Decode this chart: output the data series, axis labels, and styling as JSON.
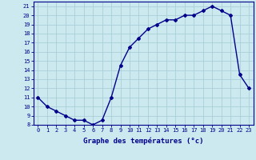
{
  "x": [
    0,
    1,
    2,
    3,
    4,
    5,
    6,
    7,
    8,
    9,
    10,
    11,
    12,
    13,
    14,
    15,
    16,
    17,
    18,
    19,
    20,
    21,
    22,
    23
  ],
  "y": [
    11,
    10,
    9.5,
    9,
    8.5,
    8.5,
    8,
    8.5,
    11,
    14.5,
    16.5,
    17.5,
    18.5,
    19,
    19.5,
    19.5,
    20,
    20,
    20.5,
    21,
    20.5,
    20,
    13.5,
    12
  ],
  "xlabel": "Graphe des températures (°c)",
  "ylim": [
    8,
    21.5
  ],
  "xlim": [
    -0.5,
    23.5
  ],
  "yticks": [
    8,
    9,
    10,
    11,
    12,
    13,
    14,
    15,
    16,
    17,
    18,
    19,
    20,
    21
  ],
  "xticks": [
    0,
    1,
    2,
    3,
    4,
    5,
    6,
    7,
    8,
    9,
    10,
    11,
    12,
    13,
    14,
    15,
    16,
    17,
    18,
    19,
    20,
    21,
    22,
    23
  ],
  "line_color": "#00008b",
  "marker": "D",
  "marker_size": 2.0,
  "bg_color": "#cce9f0",
  "grid_color": "#aacfd8",
  "axis_color": "#00008b",
  "label_color": "#00008b",
  "tick_color": "#00008b",
  "xlabel_fontsize": 6.5,
  "tick_fontsize": 5.0,
  "line_width": 1.0
}
